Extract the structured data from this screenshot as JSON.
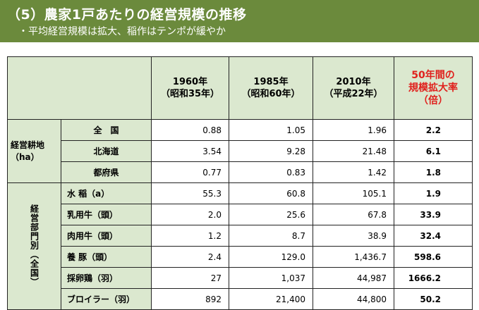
{
  "header": {
    "title": "（5）農家1戸あたりの経営規模の推移",
    "subtitle": "・平均経営規模は拡大、稲作はテンポが緩やか"
  },
  "colors": {
    "header_bg": "#6b8a3c",
    "cell_bg": "#dbe8cf",
    "accent_red": "#e0201c"
  },
  "table": {
    "headers": [
      {
        "line1": "1960年",
        "line2": "（昭和35年）"
      },
      {
        "line1": "1985年",
        "line2": "（昭和60年）"
      },
      {
        "line1": "2010年",
        "line2": "（平成22年）"
      },
      {
        "line1": "50年間の",
        "line2": "規模拡大率",
        "line3": "（倍）"
      }
    ],
    "group1": {
      "label_line1": "経営耕地",
      "label_line2": "（ha）",
      "rows": [
        {
          "label": "全　国",
          "v1960": "0.88",
          "v1985": "1.05",
          "v2010": "1.96",
          "rate": "2.2"
        },
        {
          "label": "北海道",
          "v1960": "3.54",
          "v1985": "9.28",
          "v2010": "21.48",
          "rate": "6.1"
        },
        {
          "label": "都府県",
          "v1960": "0.77",
          "v1985": "0.83",
          "v2010": "1.42",
          "rate": "1.8"
        }
      ]
    },
    "group2": {
      "label": "経営部門別（全国）",
      "rows": [
        {
          "label": "水 稲（a）",
          "v1960": "55.3",
          "v1985": "60.8",
          "v2010": "105.1",
          "rate": "1.9"
        },
        {
          "label": "乳用牛（頭）",
          "v1960": "2.0",
          "v1985": "25.6",
          "v2010": "67.8",
          "rate": "33.9"
        },
        {
          "label": "肉用牛（頭）",
          "v1960": "1.2",
          "v1985": "8.7",
          "v2010": "38.9",
          "rate": "32.4"
        },
        {
          "label": "養 豚（頭）",
          "v1960": "2.4",
          "v1985": "129.0",
          "v2010": "1,436.7",
          "rate": "598.6"
        },
        {
          "label": "採卵鶏（羽）",
          "v1960": "27",
          "v1985": "1,037",
          "v2010": "44,987",
          "rate": "1666.2"
        },
        {
          "label": "ブロイラー（羽）",
          "v1960": "892",
          "v1985": "21,400",
          "v2010": "44,800",
          "rate": "50.2"
        }
      ]
    }
  }
}
